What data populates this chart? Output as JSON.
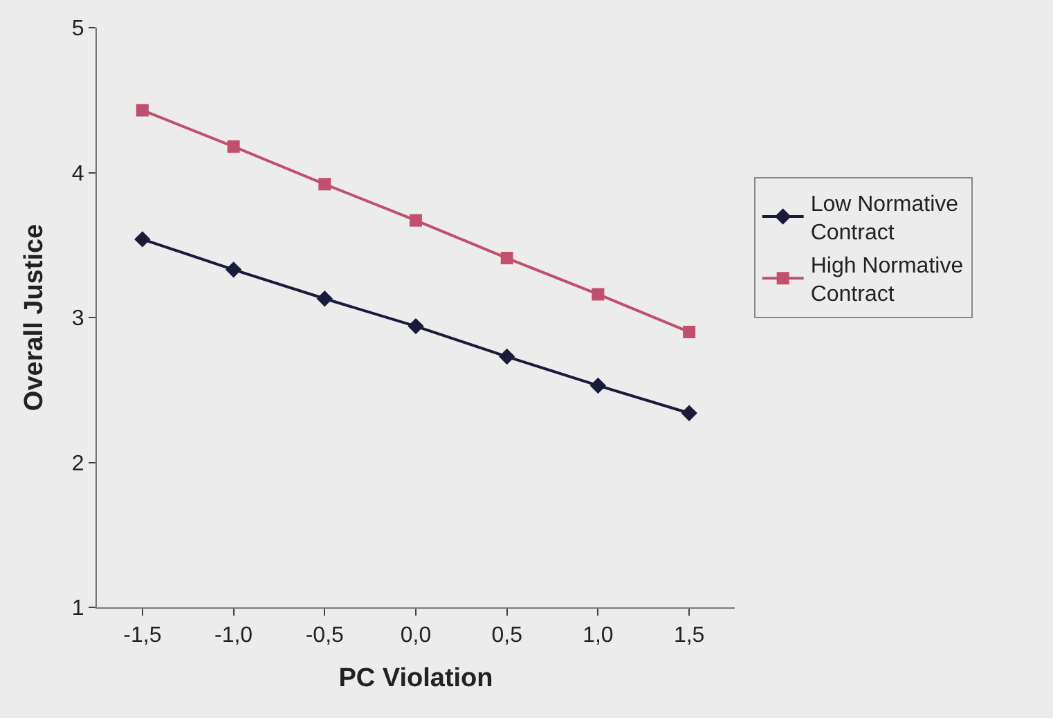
{
  "chart_data": {
    "type": "line",
    "xlabel": "PC Violation",
    "ylabel": "Overall Justice",
    "categories": [
      "-1,5",
      "-1,0",
      "-0,5",
      "0,0",
      "0,5",
      "1,0",
      "1,5"
    ],
    "ylim": [
      1,
      5
    ],
    "yticks": [
      1,
      2,
      3,
      4,
      5
    ],
    "grid": false,
    "legend": "right",
    "series": [
      {
        "name": "Low Normative Contract",
        "color": "#1a1a3a",
        "marker": "diamond",
        "values": [
          3.54,
          3.33,
          3.13,
          2.94,
          2.73,
          2.53,
          2.34
        ]
      },
      {
        "name": "High Normative Contract",
        "color": "#c0506e",
        "marker": "square",
        "values": [
          4.43,
          4.18,
          3.92,
          3.67,
          3.41,
          3.16,
          2.9
        ]
      }
    ]
  }
}
